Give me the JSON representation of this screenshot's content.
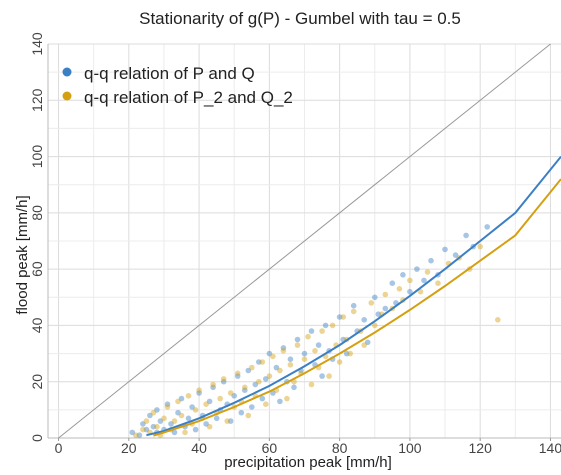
{
  "chart_data": {
    "type": "scatter",
    "title": "Stationarity of g(P) - Gumbel with tau = 0.5",
    "xlabel": "precipitation peak [mm/h]",
    "ylabel": "flood peak [mm/h]",
    "xlim": [
      -3,
      143
    ],
    "ylim": [
      0,
      140
    ],
    "xticks": [
      0,
      20,
      40,
      60,
      80,
      100,
      120,
      140
    ],
    "yticks": [
      0,
      20,
      40,
      60,
      80,
      100,
      120,
      140
    ],
    "grid": true,
    "legend_position": "top-left",
    "reference_line": {
      "x": [
        0,
        140
      ],
      "y": [
        0,
        140
      ],
      "color": "#999999"
    },
    "series": [
      {
        "name": "q-q relation of P and Q",
        "color": "#3b7fc4",
        "curve": {
          "x": [
            25,
            30,
            40,
            50,
            60,
            70,
            80,
            90,
            100,
            110,
            120,
            130,
            143
          ],
          "y": [
            1,
            2.5,
            7,
            12.5,
            18.5,
            25.5,
            33,
            41.5,
            50.5,
            60,
            70,
            80,
            100
          ]
        },
        "points": [
          [
            21,
            2
          ],
          [
            23,
            1
          ],
          [
            24,
            5
          ],
          [
            25,
            3
          ],
          [
            26,
            8
          ],
          [
            27,
            4
          ],
          [
            28,
            2
          ],
          [
            28,
            10
          ],
          [
            29,
            6
          ],
          [
            30,
            3
          ],
          [
            31,
            12
          ],
          [
            32,
            5
          ],
          [
            33,
            2
          ],
          [
            34,
            9
          ],
          [
            35,
            14
          ],
          [
            36,
            4
          ],
          [
            37,
            7
          ],
          [
            38,
            11
          ],
          [
            39,
            3
          ],
          [
            40,
            16
          ],
          [
            41,
            8
          ],
          [
            42,
            5
          ],
          [
            43,
            13
          ],
          [
            44,
            18
          ],
          [
            45,
            7
          ],
          [
            46,
            10
          ],
          [
            47,
            20
          ],
          [
            48,
            12
          ],
          [
            49,
            6
          ],
          [
            50,
            15
          ],
          [
            51,
            22
          ],
          [
            52,
            9
          ],
          [
            53,
            17
          ],
          [
            54,
            24
          ],
          [
            55,
            11
          ],
          [
            56,
            19
          ],
          [
            57,
            27
          ],
          [
            58,
            14
          ],
          [
            59,
            21
          ],
          [
            60,
            30
          ],
          [
            61,
            16
          ],
          [
            62,
            25
          ],
          [
            63,
            13
          ],
          [
            64,
            32
          ],
          [
            65,
            20
          ],
          [
            66,
            28
          ],
          [
            67,
            18
          ],
          [
            68,
            35
          ],
          [
            69,
            24
          ],
          [
            70,
            30
          ],
          [
            72,
            38
          ],
          [
            73,
            26
          ],
          [
            74,
            33
          ],
          [
            75,
            22
          ],
          [
            76,
            40
          ],
          [
            77,
            31
          ],
          [
            78,
            28
          ],
          [
            80,
            43
          ],
          [
            81,
            35
          ],
          [
            82,
            30
          ],
          [
            84,
            47
          ],
          [
            85,
            38
          ],
          [
            87,
            42
          ],
          [
            88,
            34
          ],
          [
            90,
            50
          ],
          [
            91,
            44
          ],
          [
            93,
            46
          ],
          [
            95,
            55
          ],
          [
            96,
            48
          ],
          [
            98,
            58
          ],
          [
            100,
            52
          ],
          [
            102,
            60
          ],
          [
            104,
            56
          ],
          [
            106,
            63
          ],
          [
            108,
            58
          ],
          [
            110,
            67
          ],
          [
            113,
            65
          ],
          [
            116,
            72
          ],
          [
            118,
            68
          ],
          [
            122,
            75
          ]
        ]
      },
      {
        "name": "q-q relation of P_2 and Q_2",
        "color": "#d4a012",
        "curve": {
          "x": [
            27,
            30,
            40,
            50,
            60,
            70,
            80,
            90,
            100,
            110,
            120,
            130,
            143
          ],
          "y": [
            0.8,
            2,
            6,
            11,
            16.5,
            23,
            30,
            37.5,
            45.5,
            54,
            63,
            72,
            92
          ]
        },
        "points": [
          [
            22,
            1
          ],
          [
            24,
            3
          ],
          [
            25,
            6
          ],
          [
            26,
            2
          ],
          [
            27,
            9
          ],
          [
            28,
            4
          ],
          [
            29,
            1
          ],
          [
            30,
            7
          ],
          [
            31,
            11
          ],
          [
            32,
            3
          ],
          [
            33,
            6
          ],
          [
            34,
            13
          ],
          [
            35,
            8
          ],
          [
            36,
            2
          ],
          [
            37,
            15
          ],
          [
            38,
            5
          ],
          [
            39,
            10
          ],
          [
            40,
            17
          ],
          [
            41,
            7
          ],
          [
            42,
            12
          ],
          [
            43,
            4
          ],
          [
            44,
            19
          ],
          [
            45,
            9
          ],
          [
            46,
            14
          ],
          [
            47,
            21
          ],
          [
            48,
            6
          ],
          [
            49,
            16
          ],
          [
            50,
            11
          ],
          [
            51,
            23
          ],
          [
            52,
            13
          ],
          [
            53,
            18
          ],
          [
            54,
            8
          ],
          [
            55,
            25
          ],
          [
            56,
            15
          ],
          [
            57,
            20
          ],
          [
            58,
            27
          ],
          [
            59,
            12
          ],
          [
            60,
            22
          ],
          [
            61,
            29
          ],
          [
            62,
            17
          ],
          [
            63,
            24
          ],
          [
            64,
            31
          ],
          [
            65,
            14
          ],
          [
            66,
            26
          ],
          [
            67,
            20
          ],
          [
            68,
            33
          ],
          [
            69,
            23
          ],
          [
            70,
            28
          ],
          [
            71,
            36
          ],
          [
            72,
            19
          ],
          [
            73,
            31
          ],
          [
            74,
            25
          ],
          [
            75,
            38
          ],
          [
            76,
            29
          ],
          [
            77,
            22
          ],
          [
            78,
            40
          ],
          [
            79,
            33
          ],
          [
            80,
            27
          ],
          [
            81,
            43
          ],
          [
            82,
            35
          ],
          [
            83,
            30
          ],
          [
            84,
            45
          ],
          [
            86,
            38
          ],
          [
            87,
            33
          ],
          [
            89,
            48
          ],
          [
            90,
            40
          ],
          [
            92,
            44
          ],
          [
            93,
            51
          ],
          [
            95,
            46
          ],
          [
            97,
            53
          ],
          [
            98,
            49
          ],
          [
            100,
            56
          ],
          [
            103,
            52
          ],
          [
            105,
            59
          ],
          [
            108,
            55
          ],
          [
            111,
            62
          ],
          [
            114,
            64
          ],
          [
            117,
            60
          ],
          [
            120,
            68
          ],
          [
            125,
            42
          ]
        ]
      }
    ]
  }
}
